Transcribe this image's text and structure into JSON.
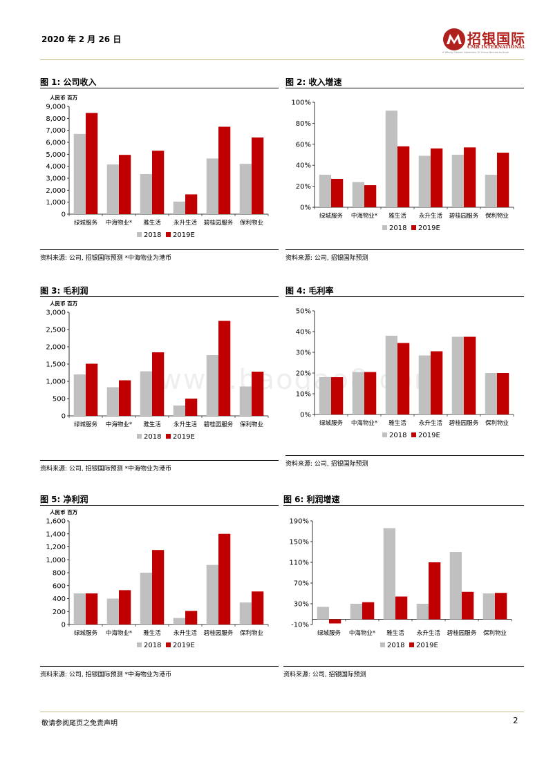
{
  "header": {
    "date": "2020 年 2 月 26 日",
    "brand_cn": "招银国际",
    "brand_en": "CMB INTERNATIONAL",
    "brand_tagline": "A Wholly Owned Subsidiary Of China Merchants Bank",
    "brand_color": "#b0201c"
  },
  "watermark": "www.baogao8.com",
  "colors": {
    "s2018": "#c0c0c0",
    "s2019": "#c00000"
  },
  "legend": {
    "s2018": "2018",
    "s2019": "2019E"
  },
  "panels": [
    {
      "title": "图 1: 公司收入",
      "source": "资料来源: 公司, 招银国际预测   *中海物业为港币"
    },
    {
      "title": "图 2: 收入增速",
      "source": "资料来源: 公司, 招银国际预测"
    },
    {
      "title": "图 3: 毛利润",
      "source": "资料来源: 公司, 招银国际预测   *中海物业为港币"
    },
    {
      "title": "图 4: 毛利率",
      "source": "资料来源: 公司, 招银国际预测"
    },
    {
      "title": "图 5: 净利润",
      "source": "资料来源: 公司, 招银国际预测   *中海物业为港币"
    },
    {
      "title": "图 6: 利润增速",
      "source": "资料来源: 公司, 招银国际预测"
    }
  ],
  "chart_data": [
    {
      "type": "bar",
      "title": "图 1: 公司收入",
      "unit_label": "人民币 百万",
      "categories": [
        "绿城服务",
        "中海物业*",
        "雅生活",
        "永升生活",
        "碧桂园服务",
        "保利物业"
      ],
      "ylim": [
        0,
        9000
      ],
      "yticks": [
        0,
        1000,
        2000,
        3000,
        4000,
        5000,
        6000,
        7000,
        8000,
        9000
      ],
      "ytick_labels": [
        "0",
        "1,000",
        "2,000",
        "3,000",
        "4,000",
        "5,000",
        "6,000",
        "7,000",
        "8,000",
        "9,000"
      ],
      "series": [
        {
          "name": "2018",
          "values": [
            6700,
            4150,
            3350,
            1050,
            4650,
            4200
          ]
        },
        {
          "name": "2019E",
          "values": [
            8450,
            4950,
            5300,
            1650,
            7300,
            6400
          ]
        }
      ]
    },
    {
      "type": "bar",
      "title": "图 2: 收入增速",
      "unit_label": "",
      "categories": [
        "绿城服务",
        "中海物业*",
        "雅生活",
        "永升生活",
        "碧桂园服务",
        "保利物业"
      ],
      "ylim": [
        0,
        100
      ],
      "yticks": [
        0,
        20,
        40,
        60,
        80,
        100
      ],
      "ytick_labels": [
        "0%",
        "20%",
        "40%",
        "60%",
        "80%",
        "100%"
      ],
      "series": [
        {
          "name": "2018",
          "values": [
            31,
            24,
            92,
            49,
            50,
            31
          ]
        },
        {
          "name": "2019E",
          "values": [
            27,
            21,
            58,
            56,
            57,
            52
          ]
        }
      ]
    },
    {
      "type": "bar",
      "title": "图 3: 毛利润",
      "unit_label": "人民币 百万",
      "categories": [
        "绿城服务",
        "中海物业*",
        "雅生活",
        "永升生活",
        "碧桂园服务",
        "保利物业"
      ],
      "ylim": [
        0,
        3000
      ],
      "yticks": [
        0,
        500,
        1000,
        1500,
        2000,
        2500,
        3000
      ],
      "ytick_labels": [
        "0",
        "500",
        "1,000",
        "1,500",
        "2,000",
        "2,500",
        "3,000"
      ],
      "series": [
        {
          "name": "2018",
          "values": [
            1200,
            830,
            1290,
            300,
            1760,
            850
          ]
        },
        {
          "name": "2019E",
          "values": [
            1510,
            1030,
            1840,
            500,
            2750,
            1280
          ]
        }
      ]
    },
    {
      "type": "bar",
      "title": "图 4: 毛利率",
      "unit_label": "",
      "categories": [
        "绿城服务",
        "中海物业*",
        "雅生活",
        "永升生活",
        "碧桂园服务",
        "保利物业"
      ],
      "ylim": [
        0,
        50
      ],
      "yticks": [
        0,
        10,
        20,
        30,
        40,
        50
      ],
      "ytick_labels": [
        "0%",
        "10%",
        "20%",
        "30%",
        "40%",
        "50%"
      ],
      "series": [
        {
          "name": "2018",
          "values": [
            18,
            20.5,
            38,
            28.5,
            37.5,
            20
          ]
        },
        {
          "name": "2019E",
          "values": [
            18,
            20.5,
            34.5,
            30.5,
            37.5,
            20
          ]
        }
      ]
    },
    {
      "type": "bar",
      "title": "图 5: 净利润",
      "unit_label": "人民币 百万",
      "categories": [
        "绿城服务",
        "中海物业*",
        "雅生活",
        "永升生活",
        "碧桂园服务",
        "保利物业"
      ],
      "ylim": [
        0,
        1600
      ],
      "yticks": [
        0,
        200,
        400,
        600,
        800,
        1000,
        1200,
        1400,
        1600
      ],
      "ytick_labels": [
        "0",
        "200",
        "400",
        "600",
        "800",
        "1,000",
        "1,200",
        "1,400",
        "1,600"
      ],
      "series": [
        {
          "name": "2018",
          "values": [
            480,
            400,
            800,
            100,
            920,
            340
          ]
        },
        {
          "name": "2019E",
          "values": [
            480,
            530,
            1150,
            210,
            1400,
            510
          ]
        }
      ]
    },
    {
      "type": "bar",
      "title": "图 6: 利润增速",
      "unit_label": "",
      "categories": [
        "绿城服务",
        "中海物业*",
        "雅生活",
        "永升生活",
        "碧桂园服务",
        "保利物业"
      ],
      "ylim": [
        -10,
        190
      ],
      "yticks": [
        -10,
        30,
        70,
        110,
        150,
        190
      ],
      "ytick_labels": [
        "-10%",
        "30%",
        "70%",
        "110%",
        "150%",
        "190%"
      ],
      "series": [
        {
          "name": "2018",
          "values": [
            24,
            30,
            176,
            30,
            130,
            50
          ]
        },
        {
          "name": "2019E",
          "values": [
            -8,
            33,
            44,
            110,
            53,
            51
          ]
        }
      ]
    }
  ],
  "footer": {
    "disclaimer": "敬请参阅尾页之免责声明",
    "page": "2"
  }
}
